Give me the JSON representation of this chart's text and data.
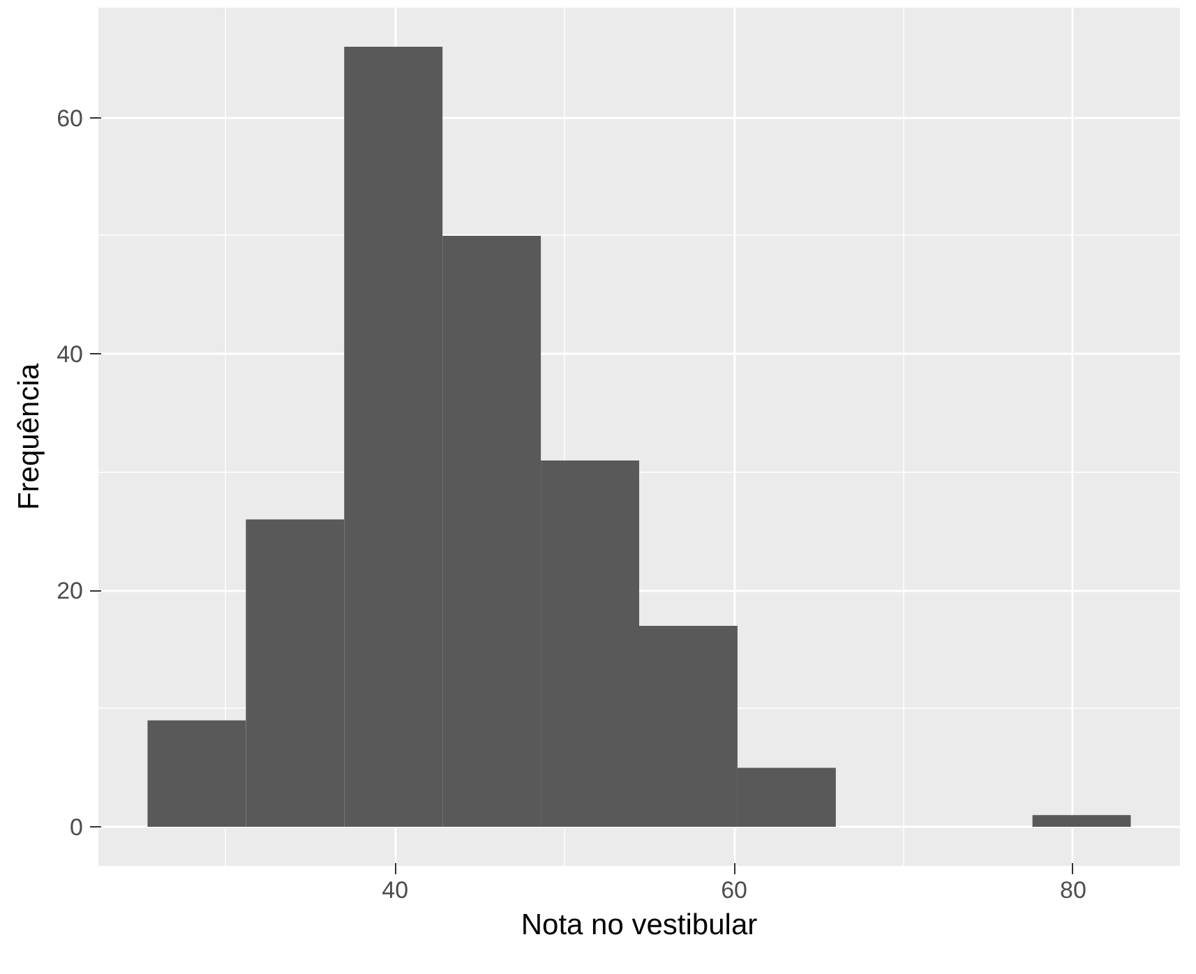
{
  "chart_data": {
    "type": "histogram",
    "xlabel": "Nota no vestibular",
    "ylabel": "Frequência",
    "bins": [
      25.4,
      31.2,
      37.0,
      42.8,
      48.6,
      54.4,
      60.2,
      66.0,
      71.8,
      77.6,
      83.4
    ],
    "values": [
      9,
      26,
      66,
      50,
      31,
      17,
      5,
      0,
      0,
      1
    ],
    "color": "#595959",
    "xlim": [
      22.5,
      86.3
    ],
    "ylim": [
      -3.3,
      69.3
    ],
    "xticks": [
      40,
      60,
      80
    ],
    "yticks": [
      0,
      20,
      40,
      60
    ],
    "grid": true
  }
}
